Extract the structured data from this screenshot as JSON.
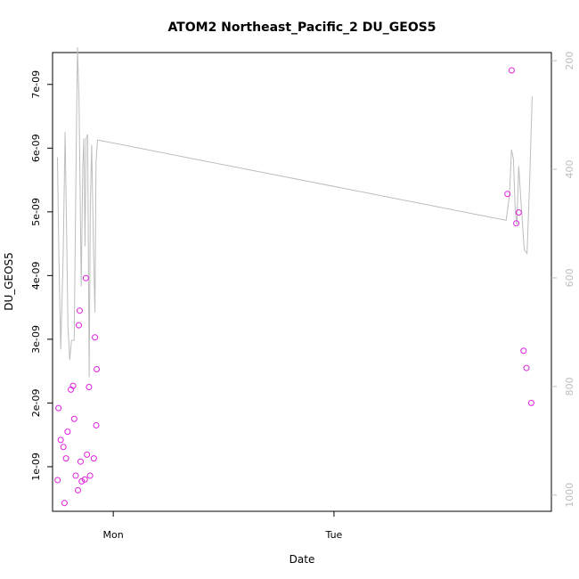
{
  "chart_data": {
    "type": "scatter",
    "title": "ATOM2 Northeast_Pacific_2 DU_GEOS5",
    "xlabel": "Date",
    "ylabel": "DU_GEOS5",
    "x_ticks": [
      {
        "label": "Mon",
        "day": 1.0
      },
      {
        "label": "Tue",
        "day": 2.0
      }
    ],
    "y_ticks": [
      {
        "label": "1e-09",
        "value": 1e-09
      },
      {
        "label": "2e-09",
        "value": 2e-09
      },
      {
        "label": "3e-09",
        "value": 3e-09
      },
      {
        "label": "4e-09",
        "value": 4e-09
      },
      {
        "label": "5e-09",
        "value": 5e-09
      },
      {
        "label": "6e-09",
        "value": 6e-09
      },
      {
        "label": "7e-09",
        "value": 7e-09
      }
    ],
    "y2_ticks": [
      {
        "label": "200",
        "value": 200
      },
      {
        "label": "400",
        "value": 400
      },
      {
        "label": "600",
        "value": 600
      },
      {
        "label": "800",
        "value": 800
      },
      {
        "label": "1000",
        "value": 1000
      }
    ],
    "xlim": [
      0.725,
      2.985
    ],
    "ylim": [
      3e-10,
      7.5e-09
    ],
    "y2lim": [
      185,
      1030
    ],
    "y2_reversed": true,
    "colors": {
      "points": "#e020e0",
      "line": "#bdbdbd",
      "axis": "#000000",
      "right_axis": "#bdbdbd"
    },
    "series": [
      {
        "role": "points",
        "points": [
          [
            0.748,
            7.9e-10
          ],
          [
            0.752,
            1.92e-09
          ],
          [
            0.762,
            1.42e-09
          ],
          [
            0.774,
            1.31e-09
          ],
          [
            0.779,
            4.3e-10
          ],
          [
            0.786,
            1.13e-09
          ],
          [
            0.793,
            1.55e-09
          ],
          [
            0.808,
            2.21e-09
          ],
          [
            0.818,
            2.27e-09
          ],
          [
            0.823,
            1.75e-09
          ],
          [
            0.83,
            8.6e-10
          ],
          [
            0.84,
            6.3e-10
          ],
          [
            0.844,
            3.22e-09
          ],
          [
            0.848,
            3.45e-09
          ],
          [
            0.852,
            1.08e-09
          ],
          [
            0.857,
            7.7e-10
          ],
          [
            0.871,
            8e-10
          ],
          [
            0.876,
            3.96e-09
          ],
          [
            0.881,
            1.19e-09
          ],
          [
            0.89,
            2.25e-09
          ],
          [
            0.895,
            8.6e-10
          ],
          [
            0.912,
            1.13e-09
          ],
          [
            0.917,
            3.03e-09
          ],
          [
            0.923,
            1.65e-09
          ],
          [
            0.925,
            2.53e-09
          ],
          [
            2.786,
            5.28e-09
          ],
          [
            2.805,
            7.22e-09
          ],
          [
            2.826,
            4.82e-09
          ],
          [
            2.837,
            4.99e-09
          ],
          [
            2.859,
            2.82e-09
          ],
          [
            2.872,
            2.55e-09
          ],
          [
            2.894,
            2e-09
          ]
        ]
      },
      {
        "role": "line",
        "axis": "right",
        "points": [
          [
            0.747,
            378
          ],
          [
            0.754,
            568
          ],
          [
            0.762,
            732
          ],
          [
            0.773,
            560
          ],
          [
            0.782,
            331
          ],
          [
            0.795,
            691
          ],
          [
            0.803,
            751
          ],
          [
            0.811,
            715
          ],
          [
            0.823,
            715
          ],
          [
            0.832,
            372
          ],
          [
            0.838,
            175
          ],
          [
            0.845,
            270
          ],
          [
            0.855,
            616
          ],
          [
            0.862,
            397
          ],
          [
            0.867,
            343
          ],
          [
            0.872,
            542
          ],
          [
            0.877,
            343
          ],
          [
            0.884,
            336
          ],
          [
            0.891,
            783
          ],
          [
            0.896,
            466
          ],
          [
            0.902,
            355
          ],
          [
            0.911,
            558
          ],
          [
            0.917,
            664
          ],
          [
            0.922,
            386
          ],
          [
            0.929,
            346
          ],
          [
            2.78,
            494
          ],
          [
            2.795,
            448
          ],
          [
            2.804,
            364
          ],
          [
            2.813,
            381
          ],
          [
            2.821,
            477
          ],
          [
            2.829,
            502
          ],
          [
            2.837,
            394
          ],
          [
            2.848,
            465
          ],
          [
            2.862,
            548
          ],
          [
            2.875,
            555
          ],
          [
            2.887,
            418
          ],
          [
            2.898,
            266
          ]
        ]
      }
    ]
  }
}
